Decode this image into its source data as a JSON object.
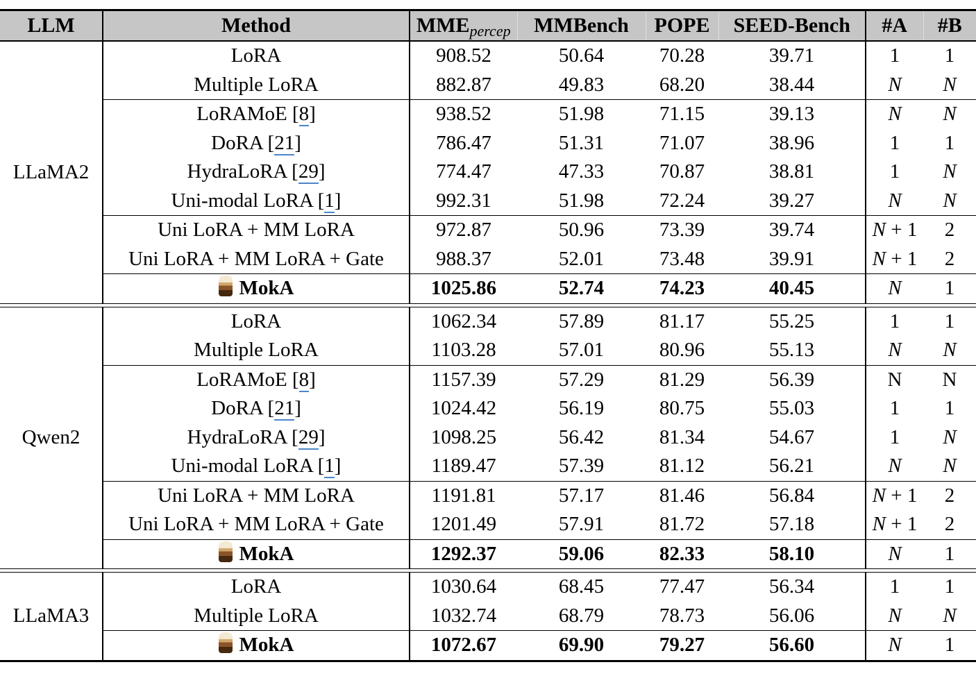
{
  "table": {
    "colors": {
      "header_bg": "#c6c6c6",
      "cite_underline": "#4a86c8"
    },
    "headers": [
      {
        "label": "LLM"
      },
      {
        "label": "Method"
      },
      {
        "label": "MME",
        "subscript": "percep"
      },
      {
        "label": "MMBench"
      },
      {
        "label": "POPE"
      },
      {
        "label": "SEED-Bench"
      },
      {
        "label": "#A"
      },
      {
        "label": "#B"
      }
    ],
    "groups": [
      {
        "llm": "LLaMA2",
        "dividers": [
          2,
          6,
          8
        ],
        "rows": [
          {
            "method": "LoRA",
            "values": [
              "908.52",
              "50.64",
              "70.28",
              "39.71"
            ],
            "a": "1",
            "b": "1"
          },
          {
            "method": "Multiple LoRA",
            "values": [
              "882.87",
              "49.83",
              "68.20",
              "38.44"
            ],
            "a": "N",
            "b": "N"
          },
          {
            "method": "LoRAMoE",
            "cite": "8",
            "values": [
              "938.52",
              "51.98",
              "71.15",
              "39.13"
            ],
            "a": "N",
            "b": "N"
          },
          {
            "method": "DoRA",
            "cite": "21",
            "values": [
              "786.47",
              "51.31",
              "71.07",
              "38.96"
            ],
            "a": "1",
            "b": "1"
          },
          {
            "method": "HydraLoRA",
            "cite": "29",
            "values": [
              "774.47",
              "47.33",
              "70.87",
              "38.81"
            ],
            "a": "1",
            "b": "N"
          },
          {
            "method": "Uni-modal LoRA",
            "cite": "1",
            "values": [
              "992.31",
              "51.98",
              "72.24",
              "39.27"
            ],
            "a": "N",
            "b": "N"
          },
          {
            "method": "Uni LoRA + MM LoRA",
            "values": [
              "972.87",
              "50.96",
              "73.39",
              "39.74"
            ],
            "a": "N + 1",
            "b": "2"
          },
          {
            "method": "Uni LoRA + MM LoRA + Gate",
            "values": [
              "988.37",
              "52.01",
              "73.48",
              "39.91"
            ],
            "a": "N + 1",
            "b": "2"
          },
          {
            "method": "MokA",
            "moka": true,
            "bold": true,
            "values": [
              "1025.86",
              "52.74",
              "74.23",
              "40.45"
            ],
            "a": "N",
            "b": "1"
          }
        ]
      },
      {
        "llm": "Qwen2",
        "dividers": [
          2,
          6,
          8
        ],
        "rows": [
          {
            "method": "LoRA",
            "values": [
              "1062.34",
              "57.89",
              "81.17",
              "55.25"
            ],
            "a": "1",
            "b": "1"
          },
          {
            "method": "Multiple LoRA",
            "values": [
              "1103.28",
              "57.01",
              "80.96",
              "55.13"
            ],
            "a": "N",
            "b": "N"
          },
          {
            "method": "LoRAMoE",
            "cite": "8",
            "values": [
              "1157.39",
              "57.29",
              "81.29",
              "56.39"
            ],
            "a": "N",
            "b": "N",
            "upright": true
          },
          {
            "method": "DoRA",
            "cite": "21",
            "values": [
              "1024.42",
              "56.19",
              "80.75",
              "55.03"
            ],
            "a": "1",
            "b": "1"
          },
          {
            "method": "HydraLoRA",
            "cite": "29",
            "values": [
              "1098.25",
              "56.42",
              "81.34",
              "54.67"
            ],
            "a": "1",
            "b": "N"
          },
          {
            "method": "Uni-modal LoRA",
            "cite": "1",
            "values": [
              "1189.47",
              "57.39",
              "81.12",
              "56.21"
            ],
            "a": "N",
            "b": "N"
          },
          {
            "method": "Uni LoRA + MM LoRA",
            "values": [
              "1191.81",
              "57.17",
              "81.46",
              "56.84"
            ],
            "a": "N + 1",
            "b": "2"
          },
          {
            "method": "Uni LoRA + MM LoRA + Gate",
            "values": [
              "1201.49",
              "57.91",
              "81.72",
              "57.18"
            ],
            "a": "N + 1",
            "b": "2"
          },
          {
            "method": "MokA",
            "moka": true,
            "bold": true,
            "values": [
              "1292.37",
              "59.06",
              "82.33",
              "58.10"
            ],
            "a": "N",
            "b": "1"
          }
        ]
      },
      {
        "llm": "LLaMA3",
        "dividers": [
          2
        ],
        "rows": [
          {
            "method": "LoRA",
            "values": [
              "1030.64",
              "68.45",
              "77.47",
              "56.34"
            ],
            "a": "1",
            "b": "1"
          },
          {
            "method": "Multiple LoRA",
            "values": [
              "1032.74",
              "68.79",
              "78.73",
              "56.06"
            ],
            "a": "N",
            "b": "N"
          },
          {
            "method": "MokA",
            "moka": true,
            "bold": true,
            "values": [
              "1072.67",
              "69.90",
              "79.27",
              "56.60"
            ],
            "a": "N",
            "b": "1"
          }
        ]
      }
    ]
  }
}
